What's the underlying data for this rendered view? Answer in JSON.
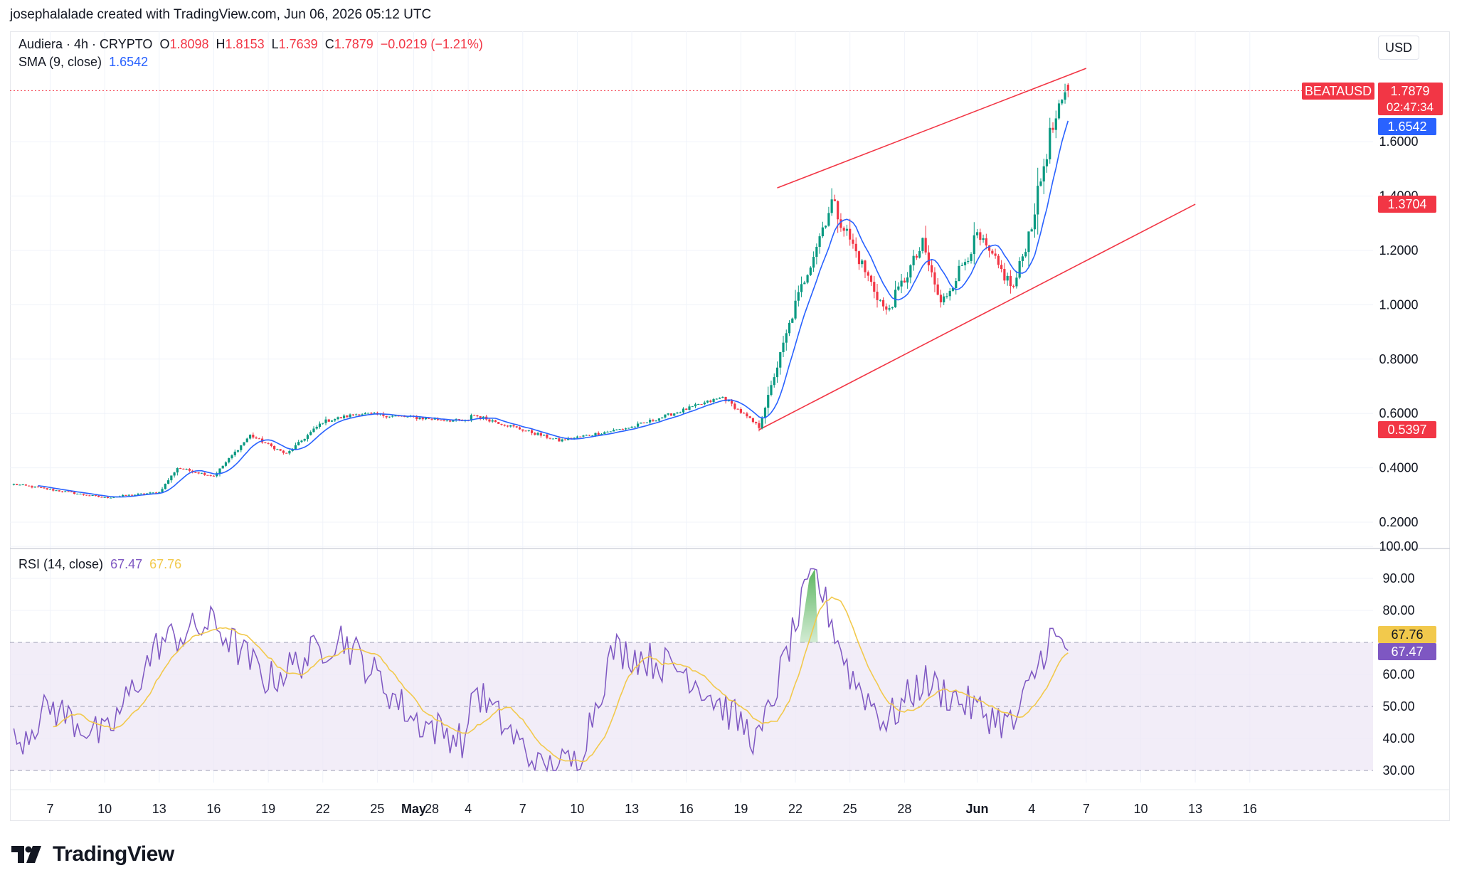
{
  "header": {
    "attribution": "josephalalade created with TradingView.com, Jun 06, 2026 05:12 UTC"
  },
  "legend": {
    "symbol": "Audiera · 4h · CRYPTO",
    "o_label": "O",
    "o_value": "1.8098",
    "h_label": "H",
    "h_value": "1.8153",
    "l_label": "L",
    "l_value": "1.7639",
    "c_label": "C",
    "c_value": "1.7879",
    "change": "−0.0219 (−1.21%)",
    "sma_label": "SMA (9, close)",
    "sma_value": "1.6542",
    "rsi_label": "RSI (14, close)",
    "rsi_value": "67.47",
    "rsi_ma_value": "67.76"
  },
  "currency_button": "USD",
  "colors": {
    "up": "#089981",
    "down": "#f23645",
    "sma": "#2962ff",
    "rsi": "#7e57c2",
    "rsi_ma": "#f2c94c",
    "trendline": "#f23645",
    "rsi_band": "#ede7f6"
  },
  "price_labels": {
    "ticker": "BEATAUSD",
    "last": "1.7879",
    "countdown": "02:47:34",
    "sma": "1.6542",
    "upper_channel": "1.3704",
    "lower_channel": "0.5397",
    "rsi_ma": "67.76",
    "rsi": "67.47"
  },
  "brand": "TradingView",
  "chart_data": [
    {
      "type": "candlestick",
      "title": "Audiera · 4h · CRYPTO",
      "x_tick_labels": [
        "7",
        "10",
        "13",
        "16",
        "19",
        "22",
        "25",
        "28",
        "May",
        "4",
        "7",
        "10",
        "13",
        "16",
        "19",
        "22",
        "25",
        "28",
        "Jun",
        "4",
        "7",
        "10",
        "13",
        "16"
      ],
      "y_tick_labels": [
        "0.2000",
        "0.4000",
        "0.6000",
        "0.8000",
        "1.0000",
        "1.2000",
        "1.4000",
        "1.6000"
      ],
      "ylim": [
        0.1,
        1.95
      ],
      "ohlc": {
        "open": 1.8098,
        "high": 1.8153,
        "low": 1.7639,
        "close": 1.7879
      },
      "last_price": 1.7879,
      "key_points": [
        {
          "date": "Apr 5",
          "close": 0.34
        },
        {
          "date": "Apr 10",
          "close": 0.29
        },
        {
          "date": "Apr 13",
          "close": 0.31
        },
        {
          "date": "Apr 14",
          "close": 0.4
        },
        {
          "date": "Apr 16",
          "close": 0.37
        },
        {
          "date": "Apr 18",
          "close": 0.52
        },
        {
          "date": "Apr 20",
          "close": 0.45
        },
        {
          "date": "Apr 22",
          "close": 0.57
        },
        {
          "date": "Apr 24",
          "close": 0.6
        },
        {
          "date": "Apr 30",
          "close": 0.57
        },
        {
          "date": "May 3",
          "close": 0.62
        },
        {
          "date": "May 9",
          "close": 0.5
        },
        {
          "date": "May 13",
          "close": 0.55
        },
        {
          "date": "May 18",
          "close": 0.66
        },
        {
          "date": "May 20",
          "close": 0.55
        },
        {
          "date": "May 22",
          "close": 1.0
        },
        {
          "date": "May 24",
          "close": 1.38
        },
        {
          "date": "May 26",
          "close": 1.1
        },
        {
          "date": "May 27",
          "close": 0.97
        },
        {
          "date": "May 29",
          "close": 1.22
        },
        {
          "date": "May 30",
          "close": 1.0
        },
        {
          "date": "Jun 1",
          "close": 1.25
        },
        {
          "date": "Jun 3",
          "close": 1.06
        },
        {
          "date": "Jun 4",
          "close": 1.3
        },
        {
          "date": "Jun 5",
          "close": 1.62
        },
        {
          "date": "Jun 6",
          "close": 1.7879
        }
      ],
      "series": [
        {
          "name": "SMA (9, close)",
          "last": 1.6542
        }
      ],
      "annotations": [
        {
          "type": "trendline",
          "start": {
            "date": "May 21",
            "price": 1.43
          },
          "end": {
            "date": "Jun 7",
            "price": 1.87
          }
        },
        {
          "type": "trendline",
          "start": {
            "date": "May 20",
            "price": 0.54
          },
          "end": {
            "date": "Jun 13",
            "price": 1.37
          }
        }
      ],
      "grid": true
    },
    {
      "type": "line",
      "title": "RSI (14, close)",
      "y_tick_labels": [
        "30.00",
        "40.00",
        "50.00",
        "60.00",
        "80.00",
        "90.00",
        "100.00"
      ],
      "ylim": [
        30,
        100
      ],
      "bands": [
        30,
        50,
        70
      ],
      "key_points": [
        {
          "date": "Apr 5",
          "rsi": 38
        },
        {
          "date": "Apr 7",
          "rsi": 50
        },
        {
          "date": "Apr 10",
          "rsi": 40
        },
        {
          "date": "Apr 13",
          "rsi": 70
        },
        {
          "date": "Apr 16",
          "rsi": 76
        },
        {
          "date": "Apr 19",
          "rsi": 58
        },
        {
          "date": "Apr 23",
          "rsi": 72
        },
        {
          "date": "Apr 27",
          "rsi": 46
        },
        {
          "date": "Apr 30",
          "rsi": 39
        },
        {
          "date": "May 3",
          "rsi": 65
        },
        {
          "date": "May 8",
          "rsi": 30
        },
        {
          "date": "May 10",
          "rsi": 33
        },
        {
          "date": "May 12",
          "rsi": 68
        },
        {
          "date": "May 16",
          "rsi": 61
        },
        {
          "date": "May 20",
          "rsi": 39
        },
        {
          "date": "May 23",
          "rsi": 93
        },
        {
          "date": "May 25",
          "rsi": 60
        },
        {
          "date": "May 27",
          "rsi": 45
        },
        {
          "date": "May 29",
          "rsi": 58
        },
        {
          "date": "Jun 1",
          "rsi": 49
        },
        {
          "date": "Jun 3",
          "rsi": 44
        },
        {
          "date": "Jun 5",
          "rsi": 72
        },
        {
          "date": "Jun 6",
          "rsi": 67.47
        }
      ],
      "series": [
        {
          "name": "RSI (14, close)",
          "last": 67.47
        },
        {
          "name": "RSI MA",
          "last": 67.76
        }
      ]
    }
  ]
}
